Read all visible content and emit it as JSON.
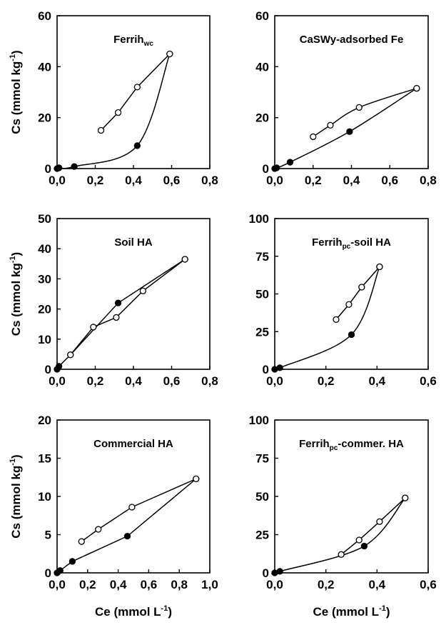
{
  "chart_data": [
    {
      "type": "line",
      "title": "Ferrih",
      "title_sub": "wc",
      "title_rest": "",
      "xlabel": "",
      "ylabel": "Cs (mmol kg",
      "ylabel_sup": "-1",
      "ylabel_end": ")",
      "xlim": [
        0,
        0.8
      ],
      "ylim": [
        0,
        60
      ],
      "xticks": [
        0,
        0.2,
        0.4,
        0.6,
        0.8
      ],
      "yticks": [
        0,
        20,
        40,
        60
      ],
      "xtick_labels": [
        "0,0",
        "0,2",
        "0,4",
        "0,6",
        "0,8"
      ],
      "ytick_labels": [
        "0",
        "20",
        "40",
        "60"
      ],
      "series": [
        {
          "marker": "filled",
          "smooth": true,
          "x": [
            0.0,
            0.01,
            0.09,
            0.42,
            0.59
          ],
          "y": [
            0.0,
            0.3,
            0.8,
            9.0,
            45.0
          ]
        },
        {
          "marker": "open",
          "smooth": false,
          "x": [
            0.23,
            0.32,
            0.42,
            0.59
          ],
          "y": [
            15.0,
            22.0,
            32.0,
            45.0
          ]
        }
      ]
    },
    {
      "type": "line",
      "title": "CaSWy-adsorbed Fe",
      "title_sub": "",
      "title_rest": "",
      "xlabel": "",
      "ylabel": "",
      "xlim": [
        0,
        0.8
      ],
      "ylim": [
        0,
        60
      ],
      "xticks": [
        0,
        0.2,
        0.4,
        0.6,
        0.8
      ],
      "yticks": [
        0,
        20,
        40,
        60
      ],
      "xtick_labels": [
        "0,0",
        "0,2",
        "0,4",
        "0,6",
        "0,8"
      ],
      "ytick_labels": [
        "0",
        "20",
        "40",
        "60"
      ],
      "series": [
        {
          "marker": "filled",
          "smooth": true,
          "x": [
            0.0,
            0.01,
            0.08,
            0.39,
            0.74
          ],
          "y": [
            0.0,
            0.3,
            2.5,
            14.5,
            31.5
          ]
        },
        {
          "marker": "open",
          "smooth": true,
          "x": [
            0.2,
            0.29,
            0.44,
            0.74
          ],
          "y": [
            12.5,
            17.0,
            24.0,
            31.5
          ]
        }
      ]
    },
    {
      "type": "line",
      "title": "Soil HA",
      "title_sub": "",
      "title_rest": "",
      "xlabel": "",
      "ylabel": "Cs (mmol kg",
      "ylabel_sup": "-1",
      "ylabel_end": ")",
      "xlim": [
        0,
        0.8
      ],
      "ylim": [
        0,
        50
      ],
      "xticks": [
        0,
        0.2,
        0.4,
        0.6,
        0.8
      ],
      "yticks": [
        0,
        10,
        20,
        30,
        40,
        50
      ],
      "xtick_labels": [
        "0,0",
        "0,2",
        "0,4",
        "0,6",
        "0,8"
      ],
      "ytick_labels": [
        "0",
        "10",
        "20",
        "30",
        "40",
        "50"
      ],
      "series": [
        {
          "marker": "filled",
          "smooth": false,
          "x": [
            0.0,
            0.01,
            0.07,
            0.32,
            0.67
          ],
          "y": [
            0.0,
            1.0,
            4.8,
            22.0,
            36.5
          ]
        },
        {
          "marker": "open",
          "smooth": false,
          "x": [
            0.07,
            0.19,
            0.31,
            0.45,
            0.67
          ],
          "y": [
            4.8,
            14.0,
            17.2,
            26.0,
            36.5
          ]
        }
      ]
    },
    {
      "type": "line",
      "title": "Ferrih",
      "title_sub": "pc",
      "title_rest": "-soil HA",
      "xlabel": "",
      "ylabel": "",
      "xlim": [
        0,
        0.6
      ],
      "ylim": [
        0,
        100
      ],
      "xticks": [
        0,
        0.2,
        0.4,
        0.6
      ],
      "yticks": [
        0,
        25,
        50,
        75,
        100
      ],
      "xtick_labels": [
        "0,0",
        "0,2",
        "0,4",
        "0,6"
      ],
      "ytick_labels": [
        "0",
        "25",
        "50",
        "75",
        "100"
      ],
      "series": [
        {
          "marker": "filled",
          "smooth": true,
          "x": [
            0.0,
            0.02,
            0.3,
            0.41
          ],
          "y": [
            0.0,
            1.0,
            23.0,
            68.0
          ]
        },
        {
          "marker": "open",
          "smooth": false,
          "x": [
            0.24,
            0.29,
            0.34,
            0.41
          ],
          "y": [
            33.0,
            43.0,
            54.5,
            68.0
          ]
        }
      ]
    },
    {
      "type": "line",
      "title": "Commercial HA",
      "title_sub": "",
      "title_rest": "",
      "xlabel": "Ce (mmol L",
      "xlabel_sup": "-1",
      "xlabel_end": ")",
      "ylabel": "Cs (mmol kg",
      "ylabel_sup": "-1",
      "ylabel_end": ")",
      "xlim": [
        0,
        1.0
      ],
      "ylim": [
        0,
        20
      ],
      "xticks": [
        0,
        0.2,
        0.4,
        0.6,
        0.8,
        1.0
      ],
      "yticks": [
        0,
        5,
        10,
        15,
        20
      ],
      "xtick_labels": [
        "0,0",
        "0,2",
        "0,4",
        "0,6",
        "0,8",
        "1,0"
      ],
      "ytick_labels": [
        "0",
        "5",
        "10",
        "15",
        "20"
      ],
      "series": [
        {
          "marker": "filled",
          "smooth": false,
          "x": [
            0.0,
            0.02,
            0.1,
            0.46,
            0.91
          ],
          "y": [
            0.0,
            0.3,
            1.5,
            4.8,
            12.3
          ]
        },
        {
          "marker": "open",
          "smooth": false,
          "x": [
            0.16,
            0.27,
            0.49,
            0.91
          ],
          "y": [
            4.1,
            5.7,
            8.6,
            12.3
          ]
        }
      ]
    },
    {
      "type": "line",
      "title": "Ferrih",
      "title_sub": "pc",
      "title_rest": "-commer. HA",
      "xlabel": "Ce (mmol L",
      "xlabel_sup": "-1",
      "xlabel_end": ")",
      "ylabel": "",
      "xlim": [
        0,
        0.6
      ],
      "ylim": [
        0,
        100
      ],
      "xticks": [
        0,
        0.2,
        0.4,
        0.6
      ],
      "yticks": [
        0,
        25,
        50,
        75,
        100
      ],
      "xtick_labels": [
        "0,0",
        "0,2",
        "0,4",
        "0,6"
      ],
      "ytick_labels": [
        "0",
        "25",
        "50",
        "75",
        "100"
      ],
      "series": [
        {
          "marker": "filled",
          "smooth": true,
          "x": [
            0.0,
            0.02,
            0.35,
            0.51
          ],
          "y": [
            0.0,
            1.0,
            17.5,
            49.0
          ]
        },
        {
          "marker": "open",
          "smooth": false,
          "x": [
            0.26,
            0.33,
            0.41,
            0.51
          ],
          "y": [
            12.0,
            21.5,
            33.5,
            49.0
          ]
        }
      ]
    }
  ]
}
